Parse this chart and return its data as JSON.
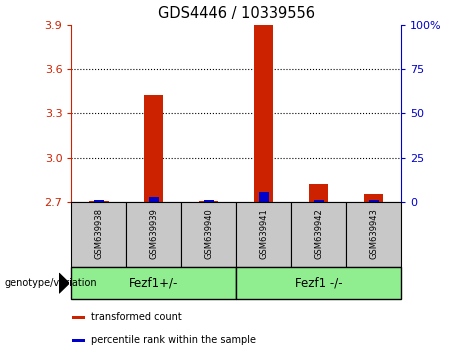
{
  "title": "GDS4446 / 10339556",
  "samples": [
    "GSM639938",
    "GSM639939",
    "GSM639940",
    "GSM639941",
    "GSM639942",
    "GSM639943"
  ],
  "red_values": [
    2.708,
    3.425,
    2.708,
    3.9,
    2.82,
    2.755
  ],
  "blue_values": [
    2.712,
    2.733,
    2.711,
    2.765,
    2.714,
    2.712
  ],
  "y_min": 2.7,
  "y_max": 3.9,
  "y_ticks": [
    2.7,
    3.0,
    3.3,
    3.6,
    3.9
  ],
  "y_right_ticks": [
    0,
    25,
    50,
    75,
    100
  ],
  "y_right_labels": [
    "0",
    "25",
    "50",
    "75",
    "100%"
  ],
  "grid_lines": [
    3.0,
    3.3,
    3.6
  ],
  "groups": [
    {
      "label": "Fezf1+/-",
      "start": 0,
      "end": 3
    },
    {
      "label": "Fezf1 -/-",
      "start": 3,
      "end": 6
    }
  ],
  "genotype_label": "genotype/variation",
  "legend_items": [
    {
      "color": "#cc2200",
      "label": "transformed count"
    },
    {
      "color": "#0000cc",
      "label": "percentile rank within the sample"
    }
  ],
  "bar_width": 0.35,
  "blue_bar_width": 0.18,
  "base": 2.7,
  "red_color": "#cc2200",
  "blue_color": "#0000cc",
  "label_area_bg": "#c8c8c8",
  "group_color": "#90EE90",
  "plot_bg": "#ffffff",
  "left_axis_color": "#cc2200",
  "right_axis_color": "#0000cc"
}
